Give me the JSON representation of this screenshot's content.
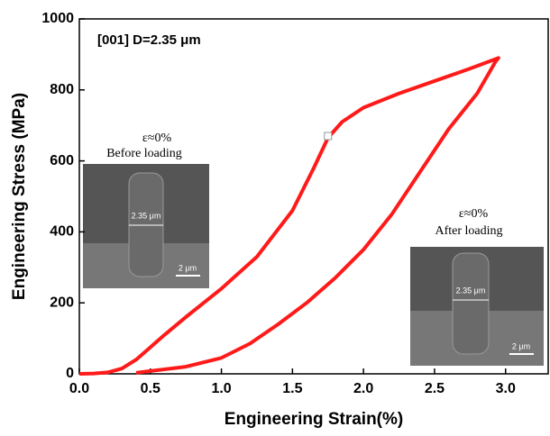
{
  "chart_data": {
    "type": "line",
    "xlabel": "Engineering Strain(%)",
    "ylabel": "Engineering Stress (MPa)",
    "annotations": [
      "[001] D=2.35 μm"
    ],
    "insets": [
      {
        "label": "ε≈0%",
        "caption": "Before loading",
        "width_label": "2.35 μm",
        "scale_bar": "2 μm"
      },
      {
        "label": "ε≈0%",
        "caption": "After loading",
        "width_label": "2.35 μm",
        "scale_bar": "2 μm"
      }
    ],
    "series": [
      {
        "color": "#ff1a1a",
        "x": [
          0,
          0.1,
          0.2,
          0.3,
          0.4,
          0.5,
          0.6,
          0.75,
          1.0,
          1.25,
          1.5,
          1.65,
          1.75,
          1.85,
          2.0,
          2.25,
          2.5,
          2.75,
          2.95,
          2.93,
          2.8,
          2.6,
          2.4,
          2.2,
          2.0,
          1.8,
          1.6,
          1.4,
          1.2,
          1.0,
          0.75,
          0.5,
          0.4
        ],
        "values": [
          0,
          1,
          4,
          15,
          40,
          75,
          110,
          160,
          240,
          330,
          460,
          580,
          665,
          710,
          750,
          790,
          825,
          860,
          890,
          880,
          790,
          690,
          570,
          450,
          350,
          270,
          200,
          140,
          85,
          45,
          20,
          8,
          3
        ]
      }
    ],
    "highlight": {
      "x": 1.75,
      "y": 670
    },
    "xlim": [
      0,
      3.3
    ],
    "ylim": [
      0,
      1000
    ],
    "xticks": [
      {
        "value": 0,
        "label": "0.0"
      },
      0.5,
      {
        "value": 1,
        "label": "1.0"
      },
      1.5,
      {
        "value": 2,
        "label": "2.0"
      },
      2.5,
      {
        "value": 3,
        "label": "3.0"
      }
    ],
    "yticks": [
      0,
      200,
      400,
      600,
      800,
      1000
    ]
  }
}
